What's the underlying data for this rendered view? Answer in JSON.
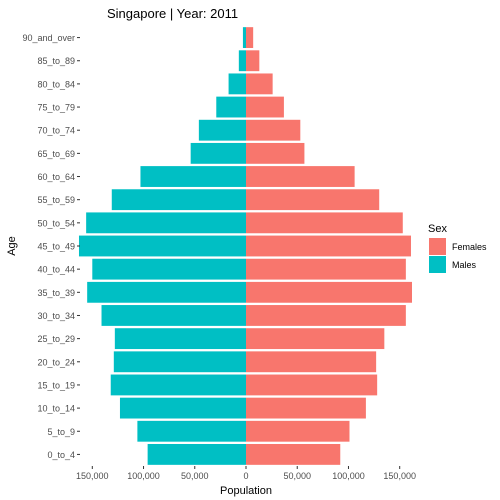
{
  "chart_data": {
    "type": "bar",
    "orientation": "horizontal",
    "title": "Singapore | Year: 2011",
    "xlabel": "Population",
    "ylabel": "Age",
    "xlim": [
      -162000,
      162000
    ],
    "xticks": [
      -150000,
      -100000,
      -50000,
      0,
      50000,
      100000,
      150000
    ],
    "xtick_labels": [
      "150,000",
      "100,000",
      "50,000",
      "0",
      "50,000",
      "100,000",
      "150,000"
    ],
    "grid": false,
    "legend_position": "right",
    "legend_title": "Sex",
    "categories": [
      "0_to_4",
      "5_to_9",
      "10_to_14",
      "15_to_19",
      "20_to_24",
      "25_to_29",
      "30_to_34",
      "35_to_39",
      "40_to_44",
      "45_to_49",
      "50_to_54",
      "55_to_59",
      "60_to_64",
      "65_to_69",
      "70_to_74",
      "75_to_79",
      "80_to_84",
      "85_to_89",
      "90_and_over"
    ],
    "series": [
      {
        "name": "Females",
        "color": "#F8766D",
        "direction": "right",
        "values": [
          92000,
          101000,
          117000,
          128000,
          127000,
          135000,
          156000,
          162000,
          156000,
          161000,
          153000,
          130000,
          106000,
          57000,
          53000,
          37000,
          26000,
          13000,
          7000
        ]
      },
      {
        "name": "Males",
        "color": "#00BFC4",
        "direction": "left",
        "values": [
          96000,
          106000,
          123000,
          132000,
          129000,
          128000,
          141000,
          155000,
          150000,
          163000,
          156000,
          131000,
          103000,
          54000,
          46000,
          29000,
          17000,
          7000,
          3000
        ]
      }
    ]
  }
}
